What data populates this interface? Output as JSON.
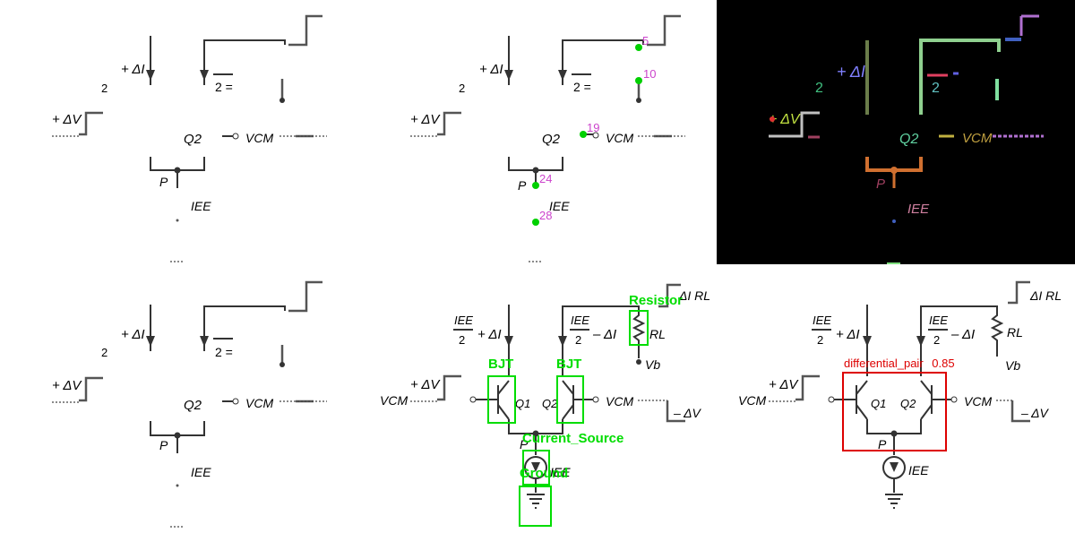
{
  "labels": {
    "two": "2",
    "plus_dI": "+ ΔI",
    "minus_dI": "– ΔI",
    "two_eq": "2 =",
    "plus_dV": "+ ΔV",
    "minus_dV": "– ΔV",
    "q1": "Q1",
    "q2": "Q2",
    "vcm": "VCM",
    "p": "P",
    "iee": "IEE",
    "rl": "RL",
    "vb": "Vb",
    "dI_rl": "ΔI RL"
  },
  "keypoints": [
    "5",
    "10",
    "19",
    "24",
    "28"
  ],
  "detections": {
    "resistor": "Resistor",
    "bjt_left": "BJT",
    "bjt_right": "BJT",
    "current_source": "Current_Source",
    "ground": "Ground"
  },
  "classification": {
    "label": "differential_pair",
    "score": "0.85",
    "color": "#dd0000"
  },
  "segmentation_colors": [
    "#6b7d4a",
    "#8fd08f",
    "#e04060",
    "#d07030",
    "#b070d0",
    "#60c0c0",
    "#c0b040",
    "#4060c0"
  ]
}
